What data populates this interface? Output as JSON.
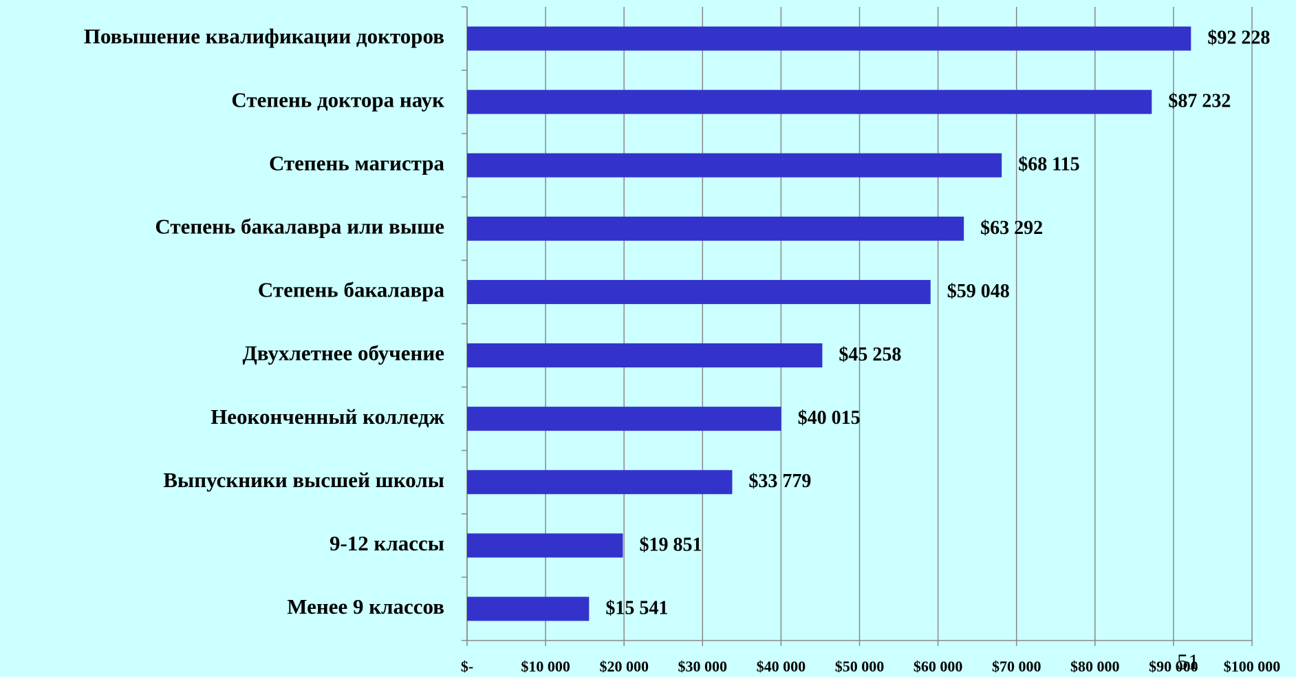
{
  "chart_data": {
    "type": "bar",
    "orientation": "horizontal",
    "categories": [
      "Повышение квалификации докторов",
      "Степень доктора наук",
      "Степень магистра",
      "Степень бакалавра или выше",
      "Степень бакалавра",
      "Двухлетнее обучение",
      "Неоконченный колледж",
      "Выпускники высшей школы",
      "9-12 классы",
      "Менее 9 классов"
    ],
    "values": [
      92228,
      87232,
      68115,
      63292,
      59048,
      45258,
      40015,
      33779,
      19851,
      15541
    ],
    "value_labels": [
      "$92 228",
      "$87 232",
      "$68 115",
      "$63 292",
      "$59 048",
      "$45 258",
      "$40 015",
      "$33 779",
      "$19 851",
      "$15 541"
    ],
    "color": "#3333cc",
    "xlim": [
      0,
      100000
    ],
    "xticks": [
      {
        "value": 0,
        "label": "$-"
      },
      {
        "value": 10000,
        "label": "$10 000"
      },
      {
        "value": 20000,
        "label": "$20 000"
      },
      {
        "value": 30000,
        "label": "$30 000"
      },
      {
        "value": 40000,
        "label": "$40 000"
      },
      {
        "value": 50000,
        "label": "$50 000"
      },
      {
        "value": 60000,
        "label": "$60 000"
      },
      {
        "value": 70000,
        "label": "$70 000"
      },
      {
        "value": 80000,
        "label": "$80 000"
      },
      {
        "value": 90000,
        "label": "$90 000"
      },
      {
        "value": 100000,
        "label": "$100 000"
      }
    ],
    "grid": true,
    "annotations": [
      "51"
    ]
  }
}
